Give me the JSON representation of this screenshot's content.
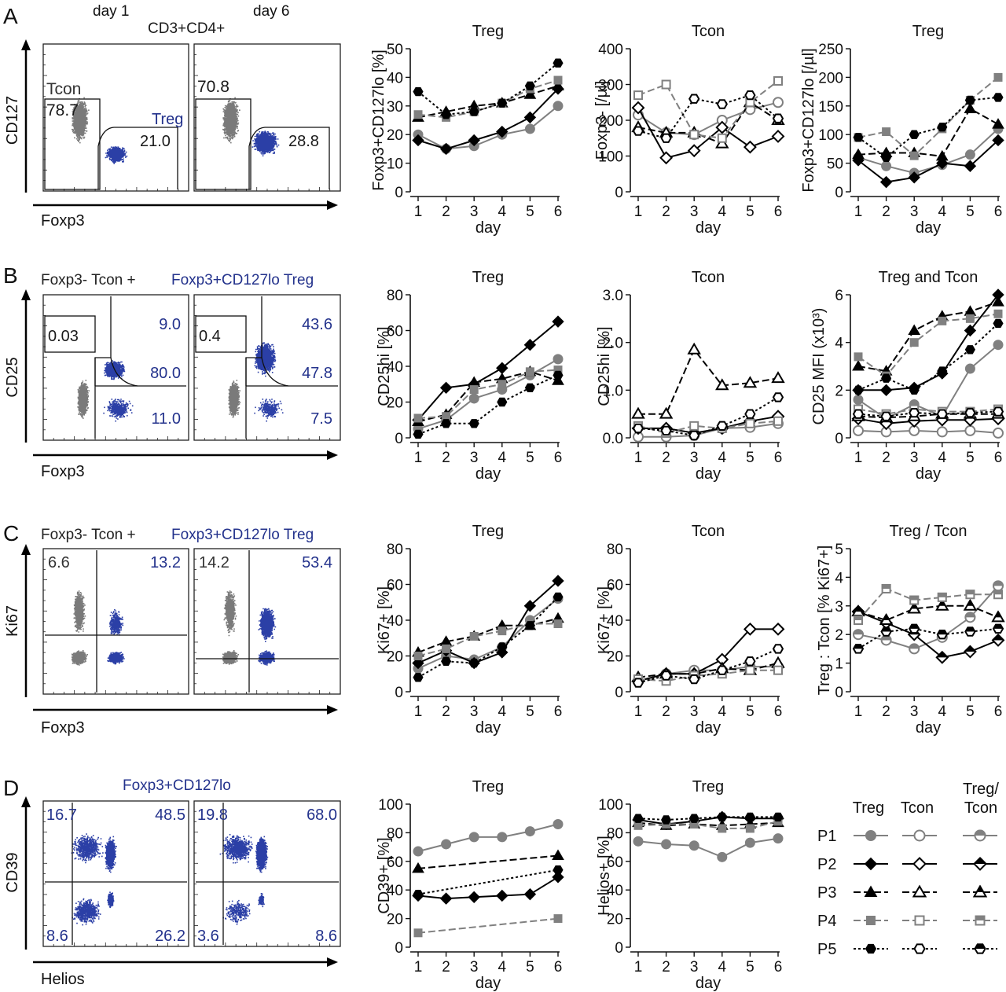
{
  "panels": {
    "A": {
      "letter": "A",
      "headers": [
        "day 1",
        "day 6"
      ],
      "flow_title": "CD3+CD4+",
      "flow_title_color": "#1a1a1a",
      "y_marker": "CD127",
      "x_marker": "Foxp3",
      "plots": [
        {
          "labels": [
            {
              "text": "Tcon",
              "color": "#333333"
            },
            {
              "text": "78.7",
              "color": "#1a1a1a"
            },
            {
              "text": "Treg",
              "color": "#23328c"
            },
            {
              "text": "21.0",
              "color": "#1a1a1a"
            }
          ]
        },
        {
          "labels": [
            {
              "text": "70.8",
              "color": "#1a1a1a"
            },
            {
              "text": "28.8",
              "color": "#1a1a1a"
            }
          ]
        }
      ]
    },
    "B": {
      "letter": "B",
      "flow_title_prefix": "Foxp3- Tcon + ",
      "flow_title_suffix": "Foxp3+CD127lo Treg",
      "y_marker": "CD25",
      "x_marker": "Foxp3",
      "plots": [
        {
          "labels": [
            "0.03",
            "9.0",
            "80.0",
            "11.0"
          ]
        },
        {
          "labels": [
            "0.4",
            "43.6",
            "47.8",
            "7.5"
          ]
        }
      ]
    },
    "C": {
      "letter": "C",
      "flow_title_prefix": "Foxp3- Tcon + ",
      "flow_title_suffix": "Foxp3+CD127lo Treg",
      "y_marker": "Ki67",
      "x_marker": "Foxp3",
      "plots": [
        {
          "labels": [
            "6.6",
            "13.2"
          ]
        },
        {
          "labels": [
            "14.2",
            "53.4"
          ]
        }
      ]
    },
    "D": {
      "letter": "D",
      "flow_title": "Foxp3+CD127lo",
      "y_marker": "CD39",
      "x_marker": "Helios",
      "plots": [
        {
          "labels": [
            "16.7",
            "48.5",
            "8.6",
            "26.2"
          ]
        },
        {
          "labels": [
            "19.8",
            "68.0",
            "3.6",
            "8.6"
          ]
        }
      ]
    }
  },
  "colors": {
    "treg_blue": "#2b3fa6",
    "tcon_grey": "#7a7a7a",
    "label_blue": "#23328c"
  },
  "legend": {
    "headers": [
      "Treg",
      "Tcon",
      "Treg/\nTcon"
    ],
    "patients": [
      "P1",
      "P2",
      "P3",
      "P4",
      "P5"
    ]
  },
  "patient_styles": {
    "P1": {
      "marker": "circle",
      "color": "#808080",
      "dash": "solid"
    },
    "P2": {
      "marker": "diamond",
      "color": "#000000",
      "dash": "solid"
    },
    "P3": {
      "marker": "triangle",
      "color": "#000000",
      "dash": "longdash"
    },
    "P4": {
      "marker": "square",
      "color": "#808080",
      "dash": "longdash"
    },
    "P5": {
      "marker": "hexagon",
      "color": "#000000",
      "dash": "dotted"
    }
  },
  "chart_data": [
    {
      "id": "A1",
      "type": "line",
      "title": "Treg",
      "ylabel": "Foxp3+CD127lo [%]",
      "xlabel": "day",
      "x": [
        1,
        2,
        3,
        4,
        5,
        6
      ],
      "ylim": [
        0,
        50
      ],
      "yticks": [
        "0",
        "10",
        "20",
        "30",
        "40",
        "50"
      ],
      "series": [
        {
          "name": "P1",
          "fill": true,
          "values": [
            20,
            15,
            16,
            20,
            22,
            30
          ]
        },
        {
          "name": "P2",
          "fill": true,
          "values": [
            18,
            15,
            18,
            21,
            26,
            36
          ]
        },
        {
          "name": "P3",
          "fill": true,
          "values": [
            26,
            28,
            30,
            31,
            34,
            37
          ]
        },
        {
          "name": "P4",
          "fill": true,
          "values": [
            27,
            26,
            28,
            31,
            36,
            39
          ]
        },
        {
          "name": "P5",
          "fill": true,
          "values": [
            35,
            27,
            28,
            31,
            37,
            45
          ]
        }
      ]
    },
    {
      "id": "A2",
      "type": "line",
      "title": "Tcon",
      "ylabel": "Foxp3- [/µl]",
      "xlabel": "day",
      "x": [
        1,
        2,
        3,
        4,
        5,
        6
      ],
      "ylim": [
        0,
        400
      ],
      "yticks": [
        "0",
        "100",
        "200",
        "300",
        "400"
      ],
      "series": [
        {
          "name": "P1",
          "fill": false,
          "values": [
            215,
            165,
            160,
            200,
            230,
            250
          ]
        },
        {
          "name": "P2",
          "fill": false,
          "values": [
            235,
            95,
            115,
            180,
            125,
            155
          ]
        },
        {
          "name": "P3",
          "fill": false,
          "values": [
            180,
            165,
            165,
            135,
            250,
            200
          ]
        },
        {
          "name": "P4",
          "fill": false,
          "values": [
            270,
            300,
            160,
            150,
            250,
            310
          ]
        },
        {
          "name": "P5",
          "fill": false,
          "values": [
            170,
            150,
            260,
            245,
            270,
            205
          ]
        }
      ]
    },
    {
      "id": "A3",
      "type": "line",
      "title": "Treg",
      "ylabel": "Foxp3+CD127lo [/µl]",
      "xlabel": "day",
      "x": [
        1,
        2,
        3,
        4,
        5,
        6
      ],
      "ylim": [
        0,
        250
      ],
      "yticks": [
        "0",
        "50",
        "100",
        "150",
        "200",
        "250"
      ],
      "series": [
        {
          "name": "P1",
          "fill": true,
          "values": [
            60,
            45,
            33,
            47,
            65,
            110
          ]
        },
        {
          "name": "P2",
          "fill": true,
          "values": [
            55,
            17,
            25,
            50,
            45,
            90
          ]
        },
        {
          "name": "P3",
          "fill": true,
          "values": [
            65,
            68,
            68,
            62,
            145,
            118
          ]
        },
        {
          "name": "P4",
          "fill": true,
          "values": [
            95,
            105,
            63,
            110,
            160,
            200
          ]
        },
        {
          "name": "P5",
          "fill": true,
          "values": [
            95,
            60,
            100,
            113,
            160,
            165
          ]
        }
      ]
    },
    {
      "id": "B1",
      "type": "line",
      "title": "Treg",
      "ylabel": "CD25hi [%]",
      "xlabel": "day",
      "x": [
        1,
        2,
        3,
        4,
        5,
        6
      ],
      "ylim": [
        0,
        80
      ],
      "yticks": [
        "0",
        "20",
        "40",
        "60",
        "80"
      ],
      "series": [
        {
          "name": "P1",
          "fill": true,
          "values": [
            5,
            10,
            22,
            27,
            35,
            44
          ]
        },
        {
          "name": "P2",
          "fill": true,
          "values": [
            10,
            28,
            30,
            39,
            52,
            65
          ]
        },
        {
          "name": "P3",
          "fill": true,
          "values": [
            9,
            13,
            31,
            33,
            37,
            32
          ]
        },
        {
          "name": "P4",
          "fill": true,
          "values": [
            11,
            12,
            27,
            30,
            37,
            38
          ]
        },
        {
          "name": "P5",
          "fill": true,
          "values": [
            2,
            8,
            8,
            20,
            28,
            35
          ]
        }
      ]
    },
    {
      "id": "B2",
      "type": "line",
      "title": "Tcon",
      "ylabel": "CD25hi [%]",
      "xlabel": "day",
      "x": [
        1,
        2,
        3,
        4,
        5,
        6
      ],
      "ylim": [
        0,
        3
      ],
      "yticks": [
        "0.0",
        "1.0",
        "2.0",
        "3.0"
      ],
      "series": [
        {
          "name": "P1",
          "fill": false,
          "values": [
            0.02,
            0.02,
            0.05,
            0.2,
            0.22,
            0.3
          ]
        },
        {
          "name": "P2",
          "fill": false,
          "values": [
            0.2,
            0.2,
            0.1,
            0.2,
            0.35,
            0.45
          ]
        },
        {
          "name": "P3",
          "fill": false,
          "values": [
            0.5,
            0.5,
            1.85,
            1.1,
            1.15,
            1.25
          ]
        },
        {
          "name": "P4",
          "fill": false,
          "values": [
            0.25,
            0.1,
            0.25,
            0.2,
            0.3,
            0.35
          ]
        },
        {
          "name": "P5",
          "fill": false,
          "values": [
            0.2,
            0.15,
            0.05,
            0.25,
            0.5,
            0.85
          ]
        }
      ]
    },
    {
      "id": "B3",
      "type": "line",
      "title": "Treg and Tcon",
      "ylabel": "CD25 MFI (x10³)",
      "xlabel": "day",
      "x": [
        1,
        2,
        3,
        4,
        5,
        6
      ],
      "ylim": [
        0,
        6
      ],
      "yticks": [
        "0",
        "2",
        "4",
        "6"
      ],
      "series": [
        {
          "name": "P1 Treg",
          "patient": "P1",
          "fill": true,
          "values": [
            1.6,
            0.8,
            1.4,
            0.9,
            2.9,
            3.9
          ]
        },
        {
          "name": "P2 Treg",
          "patient": "P2",
          "fill": true,
          "values": [
            2.0,
            2.0,
            2.1,
            2.7,
            4.5,
            6.0
          ]
        },
        {
          "name": "P3 Treg",
          "patient": "P3",
          "fill": true,
          "values": [
            3.0,
            2.8,
            4.5,
            5.1,
            5.3,
            5.7
          ]
        },
        {
          "name": "P4 Treg",
          "patient": "P4",
          "fill": true,
          "values": [
            3.4,
            2.6,
            4.0,
            4.9,
            5.0,
            5.2
          ]
        },
        {
          "name": "P5 Treg",
          "patient": "P5",
          "fill": true,
          "values": [
            2.0,
            2.5,
            2.0,
            2.8,
            3.7,
            4.8
          ]
        },
        {
          "name": "P1 Tcon",
          "patient": "P1",
          "fill": false,
          "values": [
            0.3,
            0.25,
            0.3,
            0.25,
            0.3,
            0.2
          ]
        },
        {
          "name": "P2 Tcon",
          "patient": "P2",
          "fill": false,
          "values": [
            0.8,
            0.6,
            0.7,
            0.75,
            0.75,
            0.8
          ]
        },
        {
          "name": "P3 Tcon",
          "patient": "P3",
          "fill": false,
          "values": [
            0.9,
            0.85,
            0.9,
            1.0,
            1.0,
            1.0
          ]
        },
        {
          "name": "P4 Tcon",
          "patient": "P4",
          "fill": false,
          "values": [
            1.2,
            1.0,
            1.2,
            1.1,
            1.1,
            1.2
          ]
        },
        {
          "name": "P5 Tcon",
          "patient": "P5",
          "fill": false,
          "values": [
            1.0,
            0.9,
            1.05,
            1.0,
            1.05,
            1.1
          ]
        }
      ]
    },
    {
      "id": "C1",
      "type": "line",
      "title": "Treg",
      "ylabel": "Ki67+ [%]",
      "xlabel": "day",
      "x": [
        1,
        2,
        3,
        4,
        5,
        6
      ],
      "ylim": [
        0,
        80
      ],
      "yticks": [
        "0",
        "20",
        "40",
        "60",
        "80"
      ],
      "series": [
        {
          "name": "P1",
          "fill": true,
          "values": [
            13,
            20,
            18,
            25,
            40,
            52
          ]
        },
        {
          "name": "P2",
          "fill": true,
          "values": [
            16,
            23,
            16,
            22,
            48,
            62
          ]
        },
        {
          "name": "P3",
          "fill": true,
          "values": [
            22,
            28,
            31,
            37,
            37,
            41
          ]
        },
        {
          "name": "P4",
          "fill": true,
          "values": [
            20,
            24,
            31,
            34,
            38,
            38
          ]
        },
        {
          "name": "P5",
          "fill": true,
          "values": [
            8,
            17,
            16,
            25,
            37,
            53
          ]
        }
      ]
    },
    {
      "id": "C2",
      "type": "line",
      "title": "Tcon",
      "ylabel": "Ki67+ [%]",
      "xlabel": "day",
      "x": [
        1,
        2,
        3,
        4,
        5,
        6
      ],
      "ylim": [
        0,
        80
      ],
      "yticks": [
        "0",
        "20",
        "40",
        "60",
        "80"
      ],
      "series": [
        {
          "name": "P1",
          "fill": false,
          "values": [
            6,
            10,
            12,
            12,
            14,
            14
          ]
        },
        {
          "name": "P2",
          "fill": false,
          "values": [
            6,
            10,
            10,
            18,
            35,
            35
          ]
        },
        {
          "name": "P3",
          "fill": false,
          "values": [
            8,
            10,
            10,
            13,
            12,
            16
          ]
        },
        {
          "name": "P4",
          "fill": false,
          "values": [
            7,
            6,
            9,
            10,
            12,
            12
          ]
        },
        {
          "name": "P5",
          "fill": false,
          "values": [
            5,
            9,
            7,
            12,
            17,
            24
          ]
        }
      ]
    },
    {
      "id": "C3",
      "type": "line",
      "title": "Treg / Tcon",
      "ylabel": "Treg : Tcon [% Ki67+]",
      "xlabel": "day",
      "x": [
        1,
        2,
        3,
        4,
        5,
        6
      ],
      "ylim": [
        0,
        5
      ],
      "yticks": [
        "0",
        "1",
        "2",
        "3",
        "4",
        "5"
      ],
      "series": [
        {
          "name": "P1",
          "fill": "half",
          "values": [
            2.0,
            1.8,
            1.5,
            1.9,
            2.6,
            3.7
          ]
        },
        {
          "name": "P2",
          "fill": "half",
          "values": [
            2.8,
            2.4,
            2.0,
            1.2,
            1.4,
            1.8
          ]
        },
        {
          "name": "P3",
          "fill": "half",
          "values": [
            2.8,
            2.5,
            2.9,
            3.0,
            3.0,
            2.6
          ]
        },
        {
          "name": "P4",
          "fill": "half",
          "values": [
            2.5,
            3.6,
            3.2,
            3.3,
            3.4,
            3.4
          ]
        },
        {
          "name": "P5",
          "fill": "half",
          "values": [
            1.5,
            2.1,
            2.2,
            2.0,
            2.1,
            2.2
          ]
        }
      ]
    },
    {
      "id": "D1",
      "type": "line",
      "title": "Treg",
      "ylabel": "CD39+ [%]",
      "xlabel": "day",
      "x": [
        1,
        2,
        3,
        4,
        5,
        6
      ],
      "ylim": [
        0,
        100
      ],
      "yticks": [
        "0",
        "20",
        "40",
        "60",
        "80",
        "100"
      ],
      "series": [
        {
          "name": "P1",
          "fill": true,
          "x": [
            1,
            2,
            3,
            4,
            5,
            6
          ],
          "values": [
            67,
            72,
            77,
            77,
            81,
            86
          ]
        },
        {
          "name": "P2",
          "fill": true,
          "x": [
            1,
            2,
            3,
            4,
            5,
            6
          ],
          "values": [
            36,
            34,
            35,
            36,
            37,
            49
          ]
        },
        {
          "name": "P3",
          "fill": true,
          "x": [
            1,
            6
          ],
          "values": [
            55,
            64
          ]
        },
        {
          "name": "P4",
          "fill": true,
          "x": [
            1,
            6
          ],
          "values": [
            10,
            20
          ]
        },
        {
          "name": "P5",
          "fill": true,
          "x": [
            1,
            6
          ],
          "values": [
            37,
            54
          ]
        }
      ]
    },
    {
      "id": "D2",
      "type": "line",
      "title": "Treg",
      "ylabel": "Helios+ [%]",
      "xlabel": "day",
      "x": [
        1,
        2,
        3,
        4,
        5,
        6
      ],
      "ylim": [
        0,
        100
      ],
      "yticks": [
        "0",
        "20",
        "40",
        "60",
        "80",
        "100"
      ],
      "series": [
        {
          "name": "P1",
          "fill": true,
          "values": [
            74,
            72,
            71,
            63,
            73,
            76
          ]
        },
        {
          "name": "P2",
          "fill": true,
          "values": [
            89,
            86,
            88,
            91,
            90,
            90
          ]
        },
        {
          "name": "P3",
          "fill": true,
          "values": [
            87,
            85,
            86,
            85,
            86,
            87
          ]
        },
        {
          "name": "P4",
          "fill": true,
          "values": [
            85,
            86,
            86,
            83,
            83,
            88
          ]
        },
        {
          "name": "P5",
          "fill": true,
          "values": [
            90,
            89,
            90,
            91,
            91,
            91
          ]
        }
      ]
    }
  ]
}
